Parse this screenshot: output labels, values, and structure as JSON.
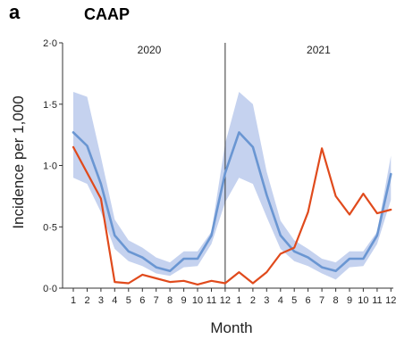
{
  "chart_data": {
    "type": "line",
    "panel_letter": "a",
    "title": "CAAP",
    "xlabel": "Month",
    "ylabel": "Incidence per 1,000",
    "ylim": [
      0,
      2.0
    ],
    "y_ticks": [
      "0·0",
      "0·5",
      "1·0",
      "1·5",
      "2·0"
    ],
    "y_tick_values": [
      0,
      0.5,
      1.0,
      1.5,
      2.0
    ],
    "x_ticks": [
      "1",
      "2",
      "3",
      "4",
      "5",
      "6",
      "7",
      "8",
      "9",
      "10",
      "11",
      "12",
      "1",
      "2",
      "3",
      "4",
      "5",
      "6",
      "7",
      "8",
      "9",
      "10",
      "11",
      "12"
    ],
    "year_labels": [
      "2020",
      "2021"
    ],
    "year_divider_index": 11,
    "grid": false,
    "colors": {
      "expected_line": "#6a96d2",
      "expected_band": "#c5d2ef",
      "observed_line": "#e04a1c",
      "axis": "#333333",
      "divider": "#333333"
    },
    "series": [
      {
        "values": [
          1.27,
          1.16,
          0.85,
          0.43,
          0.3,
          0.25,
          0.17,
          0.14,
          0.24,
          0.24,
          0.43,
          0.94,
          1.27,
          1.15,
          0.76,
          0.43,
          0.3,
          0.25,
          0.17,
          0.14,
          0.24,
          0.24,
          0.43,
          0.93
        ],
        "band_lower": [
          0.9,
          0.85,
          0.62,
          0.32,
          0.22,
          0.18,
          0.12,
          0.1,
          0.17,
          0.18,
          0.36,
          0.7,
          0.9,
          0.85,
          0.58,
          0.32,
          0.22,
          0.18,
          0.12,
          0.07,
          0.17,
          0.18,
          0.36,
          0.72
        ],
        "band_upper": [
          1.6,
          1.56,
          1.07,
          0.56,
          0.39,
          0.33,
          0.25,
          0.21,
          0.3,
          0.3,
          0.46,
          1.18,
          1.6,
          1.5,
          0.95,
          0.55,
          0.39,
          0.32,
          0.24,
          0.21,
          0.3,
          0.3,
          0.46,
          1.08
        ]
      },
      {
        "values": [
          1.15,
          0.94,
          0.73,
          0.05,
          0.04,
          0.11,
          0.08,
          0.05,
          0.06,
          0.03,
          0.06,
          0.04,
          0.13,
          0.04,
          0.13,
          0.28,
          0.33,
          0.62,
          1.14,
          0.75,
          0.6,
          0.77,
          0.61,
          0.64
        ]
      }
    ]
  }
}
